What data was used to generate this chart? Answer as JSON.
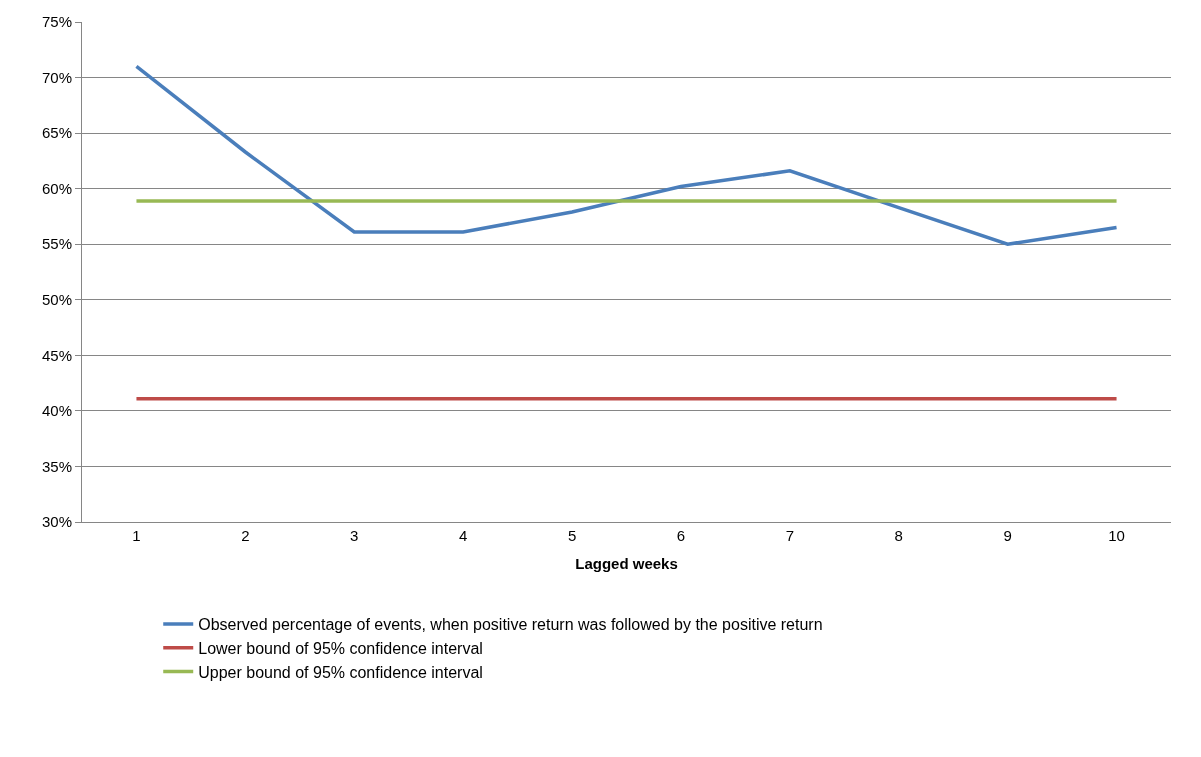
{
  "chart_data": {
    "type": "line",
    "xlabel": "Lagged weeks",
    "categories": [
      "1",
      "2",
      "3",
      "4",
      "5",
      "6",
      "7",
      "8",
      "9",
      "10"
    ],
    "series": [
      {
        "name": "Observed percentage of events, when positive return was followed by the positive return",
        "color": "#4a7ebb",
        "values": [
          71,
          63.3,
          56.1,
          56.1,
          57.9,
          60.2,
          61.6,
          58.3,
          55.0,
          56.5
        ]
      },
      {
        "name": "Lower bound of 95% confidence interval",
        "color": "#be4b48",
        "values": [
          41.1,
          41.1,
          41.1,
          41.1,
          41.1,
          41.1,
          41.1,
          41.1,
          41.1,
          41.1
        ]
      },
      {
        "name": "Upper bound of 95% confidence interval",
        "color": "#98b954",
        "values": [
          58.9,
          58.9,
          58.9,
          58.9,
          58.9,
          58.9,
          58.9,
          58.9,
          58.9,
          58.9
        ]
      }
    ],
    "ylim": [
      30,
      75
    ],
    "yticks": [
      {
        "value": 30,
        "label": "30%"
      },
      {
        "value": 35,
        "label": "35%"
      },
      {
        "value": 40,
        "label": "40%"
      },
      {
        "value": 45,
        "label": "45%"
      },
      {
        "value": 50,
        "label": "50%"
      },
      {
        "value": 55,
        "label": "55%"
      },
      {
        "value": 60,
        "label": "60%"
      },
      {
        "value": 65,
        "label": "65%"
      },
      {
        "value": 70,
        "label": "70%"
      },
      {
        "value": 75,
        "label": "75%"
      }
    ],
    "grid": "y",
    "legend": "bottom",
    "marker": "none",
    "line_style": "solid"
  }
}
